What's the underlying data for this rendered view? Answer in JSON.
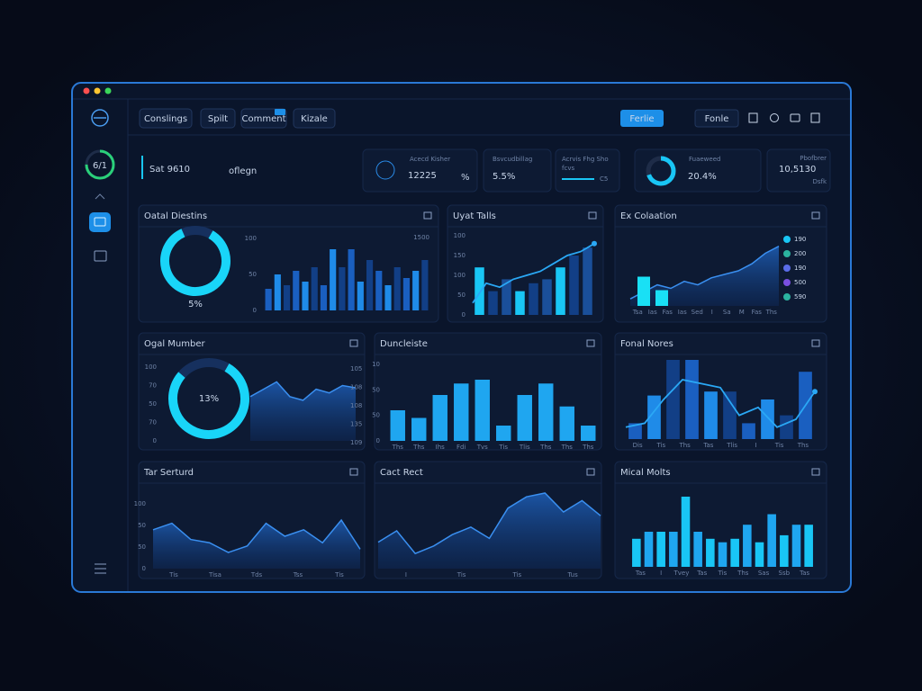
{
  "sidebar": {
    "gauge": {
      "label": "6/1",
      "value": 75
    }
  },
  "tabs": [
    "Conslings",
    "Spilt",
    "Comment",
    "Kizale"
  ],
  "buttons": [
    "Ferlie",
    "Fonle"
  ],
  "heading": {
    "title": "Sat 9610",
    "suffix": "oflegn"
  },
  "kpis": [
    {
      "label": "Acecd Kisher",
      "value": "12225",
      "unit": "%"
    },
    {
      "label": "Bsvcudbillag",
      "value": "5.5%"
    },
    {
      "label": "Acrvis Fhg Sho",
      "sub": "fcvs",
      "value": "C5"
    },
    {
      "label": "Fuaeweed",
      "value": "20.4%",
      "gauge": 70
    },
    {
      "label": "Pbofbrer",
      "value": "10,5130",
      "sub": "Dsfk"
    }
  ],
  "panels": [
    {
      "title": "Oatal Diestins",
      "charts": [
        {
          "type": "donut",
          "value": 85,
          "label": "5%"
        },
        {
          "type": "bar",
          "ylim": [
            0,
            100
          ],
          "colors": [
            "#1a5fc0",
            "#1f8be8",
            "#123f86"
          ],
          "values": [
            30,
            50,
            35,
            55,
            40,
            60,
            35,
            85,
            60,
            85,
            40,
            70,
            55,
            35,
            60,
            45,
            55,
            70
          ],
          "axis_labels": [
            "100",
            "50",
            "0"
          ],
          "corner_label": "1500"
        }
      ]
    },
    {
      "title": "Uyat Talls",
      "charts": [
        {
          "type": "bar",
          "ylim": [
            0,
            100
          ],
          "colors": [
            "#19c6f5",
            "#123f86",
            "#1a4f9a"
          ],
          "values": [
            60,
            30,
            45,
            30,
            40,
            45,
            60,
            75,
            85
          ],
          "axis_labels": [
            "100",
            "150",
            "100",
            "50",
            "0"
          ]
        },
        {
          "type": "line",
          "ylim": [
            0,
            100
          ],
          "color": "#2aa8f5",
          "values": [
            15,
            40,
            35,
            45,
            50,
            55,
            65,
            75,
            80,
            90
          ]
        }
      ]
    },
    {
      "title": "Ex Colaation",
      "charts": [
        {
          "type": "area",
          "ylim": [
            0,
            100
          ],
          "color": "#2a7fe0",
          "values": [
            10,
            20,
            30,
            25,
            35,
            30,
            40,
            45,
            50,
            60,
            75,
            85
          ],
          "xlabels": [
            "Tsa",
            "Ias",
            "Fas",
            "Ias",
            "Sed",
            "I",
            "Sa",
            "M",
            "Fas",
            "Ths"
          ]
        },
        {
          "type": "bar",
          "ylim": [
            0,
            100
          ],
          "colors": [
            "#19e0f5"
          ],
          "values": [
            65,
            35
          ]
        }
      ],
      "legend": [
        {
          "name": "190",
          "color": "#19c6f5"
        },
        {
          "name": "200",
          "color": "#2bb3a0"
        },
        {
          "name": "190",
          "color": "#5a6ce8"
        },
        {
          "name": "500",
          "color": "#7a4fe0"
        },
        {
          "name": "590",
          "color": "#2bb3a0"
        }
      ]
    },
    {
      "title": "Ogal Mumber",
      "charts": [
        {
          "type": "donut",
          "value": 78,
          "label": "13%"
        },
        {
          "type": "area",
          "ylim": [
            0,
            100
          ],
          "color": "#2a7fe0",
          "values": [
            60,
            70,
            80,
            60,
            55,
            70,
            65,
            75,
            72
          ],
          "axis_labels": [
            "100",
            "70",
            "50",
            "70",
            "0"
          ],
          "axis_labels_right": [
            "105",
            "108",
            "108",
            "135",
            "109"
          ]
        }
      ]
    },
    {
      "title": "Duncleiste",
      "charts": [
        {
          "type": "bar",
          "ylim": [
            0,
            100
          ],
          "colors": [
            "#1fa6f0"
          ],
          "values": [
            40,
            30,
            60,
            75,
            80,
            20,
            60,
            75,
            45,
            20
          ],
          "axis_labels": [
            "10",
            "50",
            "50",
            "0"
          ],
          "xlabels": [
            "Ths",
            "Ths",
            "Ihs",
            "Fdi",
            "Tvs",
            "Tis",
            "Tlis",
            "Ths",
            "Ths",
            "Ths"
          ]
        }
      ]
    },
    {
      "title": "Fonal Nores",
      "charts": [
        {
          "type": "bar",
          "ylim": [
            0,
            100
          ],
          "colors": [
            "#1a5fc0",
            "#1f8be8",
            "#123f86"
          ],
          "values": [
            20,
            55,
            100,
            100,
            60,
            60,
            20,
            50,
            30,
            85
          ],
          "xlabels": [
            "Dis",
            "Tis",
            "Ths",
            "Tas",
            "Tlis",
            "I",
            "Tis",
            "Ths"
          ]
        },
        {
          "type": "line",
          "ylim": [
            0,
            100
          ],
          "color": "#2aa8f5",
          "values": [
            15,
            20,
            50,
            75,
            70,
            65,
            30,
            40,
            15,
            25,
            60
          ]
        }
      ]
    },
    {
      "title": "Tar Serturd",
      "charts": [
        {
          "type": "area",
          "ylim": [
            0,
            100
          ],
          "color": "#2a7fe0",
          "values": [
            60,
            70,
            45,
            40,
            25,
            35,
            70,
            50,
            60,
            40,
            75,
            30
          ],
          "axis_labels": [
            "100",
            "50",
            "50",
            "0"
          ],
          "xlabels": [
            "Tis",
            "Tisa",
            "Tds",
            "Tss",
            "Tis"
          ]
        }
      ]
    },
    {
      "title": "Cact Rect",
      "charts": [
        {
          "type": "area",
          "ylim": [
            0,
            100
          ],
          "color": "#2a7fe0",
          "values": [
            35,
            50,
            20,
            30,
            45,
            55,
            40,
            80,
            95,
            100,
            75,
            90,
            70
          ],
          "xlabels": [
            "I",
            "Tis",
            "Tis",
            "Tus"
          ]
        }
      ]
    },
    {
      "title": "Mical Molts",
      "charts": [
        {
          "type": "bar",
          "ylim": [
            0,
            100
          ],
          "colors": [
            "#19c6f5",
            "#1fa6f0"
          ],
          "values": [
            40,
            50,
            50,
            50,
            100,
            50,
            40,
            35,
            40,
            60,
            35,
            75,
            45,
            60,
            60
          ],
          "xlabels": [
            "Tas",
            "I",
            "Tvey",
            "Tas",
            "Tis",
            "Ths",
            "Sas",
            "Ssb",
            "Tas"
          ]
        }
      ]
    }
  ]
}
